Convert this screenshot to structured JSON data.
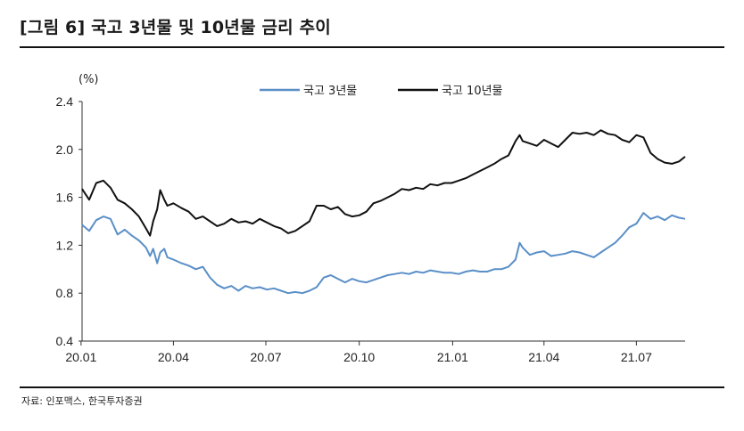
{
  "figure": {
    "title": "[그림 6] 국고 3년물 및 10년물 금리 추이",
    "source": "자료: 인포맥스, 한국투자증권"
  },
  "chart_data": {
    "type": "line",
    "unit_label": "(%)",
    "ylim": [
      0.4,
      2.4
    ],
    "yticks": [
      0.4,
      0.8,
      1.2,
      1.6,
      2.0,
      2.4
    ],
    "ytick_labels": [
      "0.4",
      "0.8",
      "1.2",
      "1.6",
      "2.0",
      "2.4"
    ],
    "xtick_labels": [
      "20.01",
      "20.04",
      "20.07",
      "20.10",
      "21.01",
      "21.04",
      "21.07"
    ],
    "xlim": [
      "2020-01-02",
      "2021-08-18"
    ],
    "xticks": [
      "2020-01-01",
      "2020-04-01",
      "2020-07-01",
      "2020-10-01",
      "2021-01-01",
      "2021-04-01",
      "2021-07-01"
    ],
    "legend_position": "top-center",
    "grid": false,
    "series": [
      {
        "name": "국고 3년물",
        "color": "#5a8fc7",
        "x": [
          "2020-01-02",
          "2020-01-09",
          "2020-01-16",
          "2020-01-23",
          "2020-01-30",
          "2020-02-06",
          "2020-02-13",
          "2020-02-20",
          "2020-02-27",
          "2020-03-05",
          "2020-03-09",
          "2020-03-12",
          "2020-03-16",
          "2020-03-19",
          "2020-03-23",
          "2020-03-26",
          "2020-04-01",
          "2020-04-09",
          "2020-04-16",
          "2020-04-23",
          "2020-04-30",
          "2020-05-07",
          "2020-05-14",
          "2020-05-21",
          "2020-05-28",
          "2020-06-04",
          "2020-06-11",
          "2020-06-18",
          "2020-06-25",
          "2020-07-02",
          "2020-07-09",
          "2020-07-16",
          "2020-07-23",
          "2020-07-30",
          "2020-08-06",
          "2020-08-13",
          "2020-08-20",
          "2020-08-27",
          "2020-09-03",
          "2020-09-10",
          "2020-09-17",
          "2020-09-24",
          "2020-10-01",
          "2020-10-08",
          "2020-10-15",
          "2020-10-22",
          "2020-10-29",
          "2020-11-05",
          "2020-11-12",
          "2020-11-19",
          "2020-11-26",
          "2020-12-03",
          "2020-12-10",
          "2020-12-17",
          "2020-12-24",
          "2020-12-31",
          "2021-01-07",
          "2021-01-14",
          "2021-01-21",
          "2021-01-28",
          "2021-02-04",
          "2021-02-11",
          "2021-02-18",
          "2021-02-25",
          "2021-03-04",
          "2021-03-08",
          "2021-03-11",
          "2021-03-18",
          "2021-03-25",
          "2021-04-01",
          "2021-04-08",
          "2021-04-15",
          "2021-04-22",
          "2021-04-29",
          "2021-05-06",
          "2021-05-13",
          "2021-05-20",
          "2021-05-27",
          "2021-06-03",
          "2021-06-10",
          "2021-06-17",
          "2021-06-24",
          "2021-07-01",
          "2021-07-08",
          "2021-07-15",
          "2021-07-22",
          "2021-07-29",
          "2021-08-05",
          "2021-08-12",
          "2021-08-18"
        ],
        "values": [
          1.37,
          1.32,
          1.41,
          1.44,
          1.42,
          1.29,
          1.33,
          1.28,
          1.24,
          1.18,
          1.11,
          1.17,
          1.05,
          1.14,
          1.17,
          1.1,
          1.08,
          1.05,
          1.03,
          1.0,
          1.02,
          0.93,
          0.87,
          0.84,
          0.86,
          0.82,
          0.86,
          0.84,
          0.85,
          0.83,
          0.84,
          0.82,
          0.8,
          0.81,
          0.8,
          0.82,
          0.85,
          0.93,
          0.95,
          0.92,
          0.89,
          0.92,
          0.9,
          0.89,
          0.91,
          0.93,
          0.95,
          0.96,
          0.97,
          0.96,
          0.98,
          0.97,
          0.99,
          0.98,
          0.97,
          0.97,
          0.96,
          0.98,
          0.99,
          0.98,
          0.98,
          1.0,
          1.0,
          1.02,
          1.08,
          1.22,
          1.18,
          1.12,
          1.14,
          1.15,
          1.11,
          1.12,
          1.13,
          1.15,
          1.14,
          1.12,
          1.1,
          1.14,
          1.18,
          1.22,
          1.28,
          1.35,
          1.38,
          1.47,
          1.42,
          1.44,
          1.41,
          1.45,
          1.43,
          1.42
        ]
      },
      {
        "name": "국고 10년물",
        "color": "#111111",
        "x": [
          "2020-01-02",
          "2020-01-09",
          "2020-01-16",
          "2020-01-23",
          "2020-01-30",
          "2020-02-06",
          "2020-02-13",
          "2020-02-20",
          "2020-02-27",
          "2020-03-05",
          "2020-03-09",
          "2020-03-12",
          "2020-03-16",
          "2020-03-19",
          "2020-03-23",
          "2020-03-26",
          "2020-04-01",
          "2020-04-09",
          "2020-04-16",
          "2020-04-23",
          "2020-04-30",
          "2020-05-07",
          "2020-05-14",
          "2020-05-21",
          "2020-05-28",
          "2020-06-04",
          "2020-06-11",
          "2020-06-18",
          "2020-06-25",
          "2020-07-02",
          "2020-07-09",
          "2020-07-16",
          "2020-07-23",
          "2020-07-30",
          "2020-08-06",
          "2020-08-13",
          "2020-08-20",
          "2020-08-27",
          "2020-09-03",
          "2020-09-10",
          "2020-09-17",
          "2020-09-24",
          "2020-10-01",
          "2020-10-08",
          "2020-10-15",
          "2020-10-22",
          "2020-10-29",
          "2020-11-05",
          "2020-11-12",
          "2020-11-19",
          "2020-11-26",
          "2020-12-03",
          "2020-12-10",
          "2020-12-17",
          "2020-12-24",
          "2020-12-31",
          "2021-01-07",
          "2021-01-14",
          "2021-01-21",
          "2021-01-28",
          "2021-02-04",
          "2021-02-11",
          "2021-02-18",
          "2021-02-25",
          "2021-03-04",
          "2021-03-08",
          "2021-03-11",
          "2021-03-18",
          "2021-03-25",
          "2021-04-01",
          "2021-04-08",
          "2021-04-15",
          "2021-04-22",
          "2021-04-29",
          "2021-05-06",
          "2021-05-13",
          "2021-05-20",
          "2021-05-27",
          "2021-06-03",
          "2021-06-10",
          "2021-06-17",
          "2021-06-24",
          "2021-07-01",
          "2021-07-08",
          "2021-07-15",
          "2021-07-22",
          "2021-07-29",
          "2021-08-05",
          "2021-08-12",
          "2021-08-18"
        ],
        "values": [
          1.67,
          1.58,
          1.72,
          1.74,
          1.68,
          1.58,
          1.55,
          1.5,
          1.44,
          1.34,
          1.28,
          1.4,
          1.5,
          1.66,
          1.58,
          1.53,
          1.55,
          1.51,
          1.48,
          1.42,
          1.44,
          1.4,
          1.36,
          1.38,
          1.42,
          1.39,
          1.4,
          1.38,
          1.42,
          1.39,
          1.36,
          1.34,
          1.3,
          1.32,
          1.36,
          1.4,
          1.53,
          1.53,
          1.5,
          1.52,
          1.46,
          1.44,
          1.45,
          1.48,
          1.55,
          1.57,
          1.6,
          1.63,
          1.67,
          1.66,
          1.68,
          1.67,
          1.71,
          1.7,
          1.72,
          1.72,
          1.74,
          1.76,
          1.79,
          1.82,
          1.85,
          1.88,
          1.92,
          1.95,
          2.07,
          2.12,
          2.07,
          2.05,
          2.03,
          2.08,
          2.05,
          2.02,
          2.08,
          2.14,
          2.13,
          2.14,
          2.12,
          2.16,
          2.13,
          2.12,
          2.08,
          2.06,
          2.12,
          2.1,
          1.97,
          1.92,
          1.89,
          1.88,
          1.9,
          1.94
        ]
      }
    ]
  }
}
